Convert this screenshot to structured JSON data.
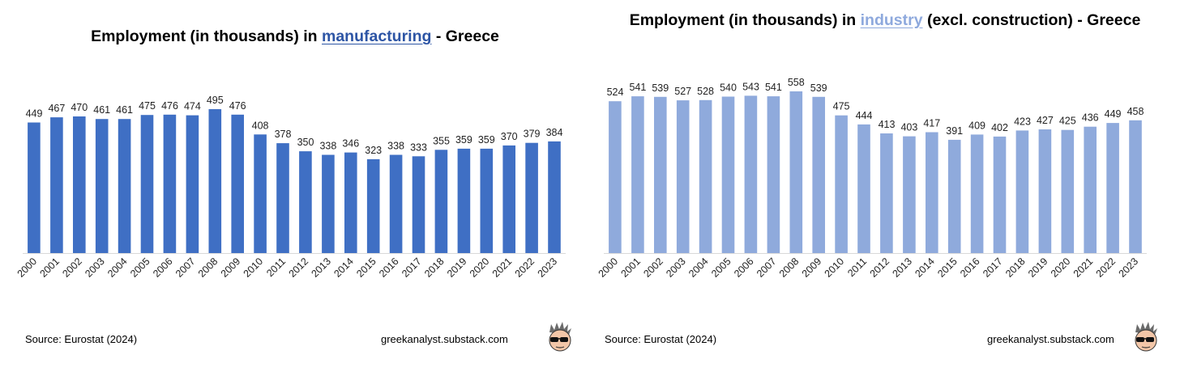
{
  "chart_data": [
    {
      "type": "bar",
      "title_parts": [
        "Employment (in thousands) in ",
        "manufacturing",
        " - Greece"
      ],
      "title_highlight_color": "#2d55a5",
      "bar_color": "#3f6fc4",
      "categories": [
        "2000",
        "2001",
        "2002",
        "2003",
        "2004",
        "2005",
        "2006",
        "2007",
        "2008",
        "2009",
        "2010",
        "2011",
        "2012",
        "2013",
        "2014",
        "2015",
        "2016",
        "2017",
        "2018",
        "2019",
        "2020",
        "2021",
        "2022",
        "2023"
      ],
      "values": [
        449,
        467,
        470,
        461,
        461,
        475,
        476,
        474,
        495,
        476,
        408,
        378,
        350,
        338,
        346,
        323,
        338,
        333,
        355,
        359,
        359,
        370,
        379,
        384
      ],
      "data_labels": true,
      "source": "Source: Eurostat (2024)",
      "site": "greekanalyst.substack.com"
    },
    {
      "type": "bar",
      "title_parts": [
        "Employment (in thousands) in ",
        "industry",
        " (excl. construction) - Greece"
      ],
      "title_highlight_color": "#8ea9dd",
      "bar_color": "#8faadc",
      "categories": [
        "2000",
        "2001",
        "2002",
        "2003",
        "2004",
        "2005",
        "2006",
        "2007",
        "2008",
        "2009",
        "2010",
        "2011",
        "2012",
        "2013",
        "2014",
        "2015",
        "2016",
        "2017",
        "2018",
        "2019",
        "2020",
        "2021",
        "2022",
        "2023"
      ],
      "values": [
        524,
        541,
        539,
        527,
        528,
        540,
        543,
        541,
        558,
        539,
        475,
        444,
        413,
        403,
        417,
        391,
        409,
        402,
        423,
        427,
        425,
        436,
        449,
        458
      ],
      "data_labels": true,
      "source": "Source: Eurostat (2024)",
      "site": "greekanalyst.substack.com"
    }
  ],
  "avatar_icon": "sunglasses-avatar-icon"
}
